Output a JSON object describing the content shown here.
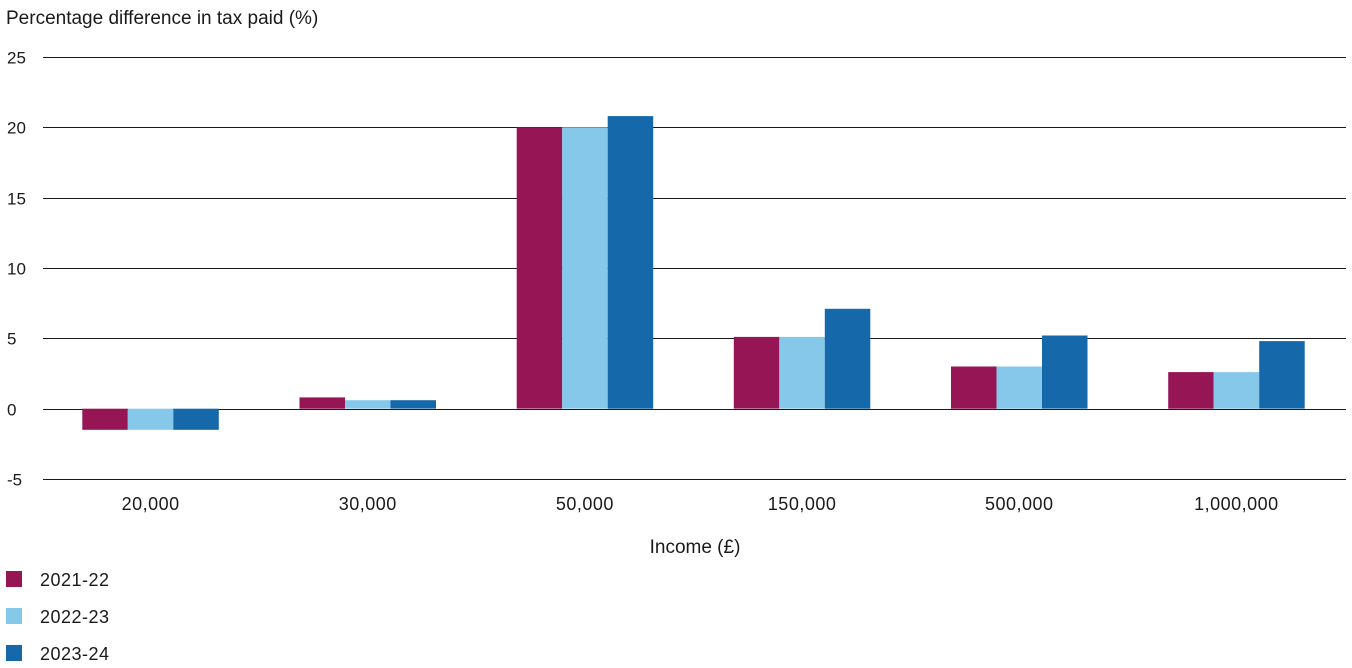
{
  "chart_data": {
    "type": "bar",
    "ylabel": "Percentage difference in tax paid (%)",
    "xlabel": "Income (£)",
    "categories": [
      "20,000",
      "30,000",
      "50,000",
      "150,000",
      "500,000",
      "1,000,000"
    ],
    "yticks": [
      "25",
      "20",
      "15",
      "10",
      "5",
      "0",
      "-5"
    ],
    "ylim": [
      -5,
      25
    ],
    "grid": true,
    "legend_position": "bottom-left",
    "series": [
      {
        "name": "2021-22",
        "color": "#961554",
        "values": [
          -1.5,
          0.8,
          20.0,
          5.1,
          3.0,
          2.6
        ]
      },
      {
        "name": "2022-23",
        "color": "#85c8ea",
        "values": [
          -1.5,
          0.6,
          20.0,
          5.1,
          3.0,
          2.6
        ]
      },
      {
        "name": "2023-24",
        "color": "#1568a9",
        "values": [
          -1.5,
          0.6,
          20.8,
          7.1,
          5.2,
          4.8
        ]
      }
    ]
  }
}
